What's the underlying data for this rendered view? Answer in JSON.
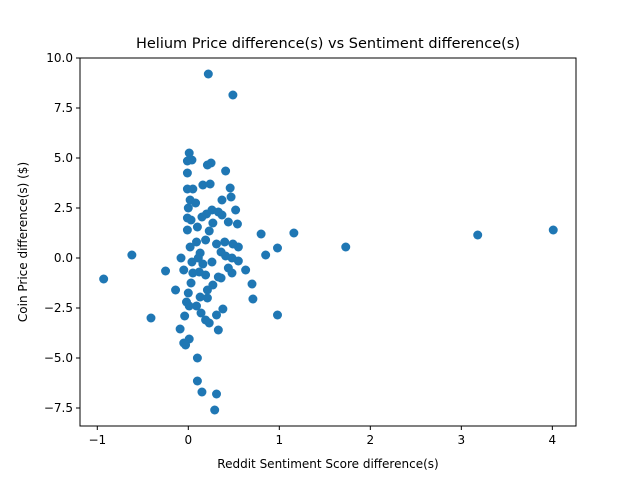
{
  "chart_data": {
    "type": "scatter",
    "title": "Helium Price difference(s) vs Sentiment difference(s)",
    "x_label": "Reddit Sentiment Score difference(s)",
    "y_label": "Coin Price difference(s) ($)",
    "color": "#1f77b4",
    "xlim": [
      -1.19,
      4.26
    ],
    "ylim": [
      -8.4,
      10
    ],
    "xticks": [
      {
        "value": -1,
        "label": "−1"
      },
      0,
      1,
      2,
      3,
      4
    ],
    "yticks": [
      {
        "value": -7.5,
        "label": "−7.5"
      },
      {
        "value": -5,
        "label": "−5.0"
      },
      {
        "value": -2.5,
        "label": "−2.5"
      },
      {
        "value": 0,
        "label": "0.0"
      },
      {
        "value": 2.5,
        "label": "2.5"
      },
      {
        "value": 5,
        "label": "5.0"
      },
      {
        "value": 7.5,
        "label": "7.5"
      },
      {
        "value": 10,
        "label": "10.0"
      }
    ],
    "x": [
      -0.93,
      -0.62,
      -0.41,
      -0.25,
      -0.14,
      -0.09,
      -0.08,
      0.22,
      0.49,
      4.01,
      3.18,
      1.73,
      1.16,
      0.98,
      0.98,
      0.85,
      0.8,
      0.7,
      0.71,
      0.63,
      0.55,
      0.55,
      0.54,
      0.52,
      0.47,
      0.46,
      0.48,
      0.49,
      0.41,
      0.44,
      0.37,
      0.38,
      0.31,
      0.29,
      0.33,
      0.31,
      0.23,
      0.25,
      0.21,
      0.16,
      0.24,
      0.15,
      0.1,
      0.1,
      0.19,
      0.21,
      0.13,
      0.01,
      0.04,
      -0.01,
      -0.01,
      -0.01,
      0.05,
      0.02,
      0.08,
      0,
      -0.01,
      0.03,
      -0.01,
      -0.03,
      0.01,
      -0.05,
      -0.04,
      -0.02,
      0,
      -0.05,
      0.03,
      0.04,
      0.02,
      0.09,
      0.13,
      0.19,
      0.23,
      0.27,
      0.2,
      0.26,
      0.33,
      0.37,
      0.31,
      0.36,
      0.41,
      0.44,
      0.36,
      0.27,
      0.21,
      0.12,
      0.16,
      0.26,
      0.33,
      0.4,
      0.09,
      0.01,
      0.14,
      0.05,
      0.1,
      0.15,
      0.11,
      0.19,
      0.48
    ],
    "values": [
      -1.05,
      0.15,
      -3.0,
      -0.65,
      -1.6,
      -3.55,
      0,
      9.2,
      8.15,
      1.4,
      1.15,
      0.55,
      1.25,
      0.5,
      -2.85,
      0.15,
      1.2,
      -1.3,
      -2.05,
      -0.6,
      0.55,
      -0.15,
      1.7,
      2.4,
      3.05,
      3.5,
      -0.75,
      0.7,
      4.35,
      1.8,
      2.9,
      -2.55,
      -6.8,
      -7.6,
      -3.6,
      -2.85,
      -3.25,
      4.75,
      4.65,
      3.65,
      3.7,
      -6.7,
      -6.15,
      -5.0,
      -3.1,
      -2.0,
      -1.95,
      5.25,
      4.9,
      4.85,
      4.25,
      3.45,
      3.45,
      2.9,
      2.75,
      2.5,
      2.0,
      1.9,
      1.4,
      -4.35,
      -4.05,
      -4.25,
      -2.9,
      -2.2,
      -1.75,
      -0.6,
      -1.25,
      -0.2,
      0.55,
      0.8,
      0.25,
      0.9,
      1.35,
      1.75,
      2.2,
      2.4,
      2.3,
      2.15,
      0.7,
      0.3,
      0.1,
      -0.5,
      -1.0,
      -1.35,
      -1.6,
      -0.7,
      -0.3,
      -0.2,
      -0.95,
      0.8,
      -2.4,
      -2.4,
      -2.75,
      -0.75,
      1.55,
      2.05,
      0,
      -0.85,
      0
    ]
  }
}
